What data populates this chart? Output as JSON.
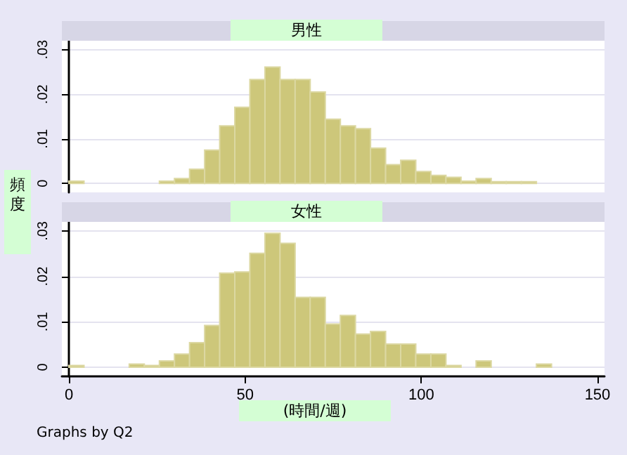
{
  "chart_data": [
    {
      "type": "histogram",
      "title": "男性",
      "ylabel": "頻度",
      "bins": [
        0,
        4.28,
        8.56,
        12.84,
        17.12,
        21.4,
        25.68,
        29.96,
        34.24,
        38.52,
        42.8,
        47.08,
        51.36,
        55.64,
        59.92,
        64.2,
        68.48,
        72.76,
        77.04,
        81.32,
        85.6,
        89.88,
        94.16,
        98.44,
        102.72,
        107,
        111.28,
        115.56,
        119.84,
        124.12,
        128.4,
        132.68,
        136.96
      ],
      "values": [
        0.0005,
        0,
        0,
        0,
        0,
        0,
        0.0005,
        0.0011,
        0.0032,
        0.0075,
        0.0129,
        0.0171,
        0.0233,
        0.0261,
        0.0233,
        0.0233,
        0.0205,
        0.0144,
        0.0129,
        0.0123,
        0.0079,
        0.0042,
        0.0052,
        0.0027,
        0.0018,
        0.0014,
        0.0005,
        0.0011,
        0.0004,
        0.0004,
        0.0004,
        0
      ],
      "color": "#cdc77a",
      "xlim": [
        -2,
        152
      ],
      "ylim": [
        -0.002,
        0.032
      ],
      "yticks": [
        0,
        {
          "value": 0.01,
          "label": ".01"
        },
        {
          "value": 0.02,
          "label": ".02"
        },
        {
          "value": 0.03,
          "label": ".03"
        }
      ],
      "grid": "y",
      "tick_labels": "y"
    },
    {
      "type": "histogram",
      "title": "女性",
      "xlabel": "(時間/週)",
      "annotations": [
        "Graphs by Q2"
      ],
      "bins": [
        0,
        4.28,
        8.56,
        12.84,
        17.12,
        21.4,
        25.68,
        29.96,
        34.24,
        38.52,
        42.8,
        47.08,
        51.36,
        55.64,
        59.92,
        64.2,
        68.48,
        72.76,
        77.04,
        81.32,
        85.6,
        89.88,
        94.16,
        98.44,
        102.72,
        107,
        111.28,
        115.56,
        119.84,
        124.12,
        128.4,
        132.68,
        136.96
      ],
      "values": [
        0.0004,
        0,
        0,
        0,
        0.0007,
        0.0004,
        0.0014,
        0.0029,
        0.0054,
        0.0092,
        0.0207,
        0.021,
        0.0251,
        0.0295,
        0.0273,
        0.0154,
        0.0154,
        0.0095,
        0.0114,
        0.0073,
        0.0079,
        0.0051,
        0.0051,
        0.0029,
        0.0029,
        0.0004,
        0,
        0.0014,
        0,
        0,
        0,
        0.0007
      ],
      "color": "#cdc77a",
      "xlim": [
        -2,
        152
      ],
      "xticks": [
        0,
        50,
        100,
        150
      ],
      "ylim": [
        -0.002,
        0.032
      ],
      "yticks": [
        0,
        {
          "value": 0.01,
          "label": ".01"
        },
        {
          "value": 0.02,
          "label": ".02"
        },
        {
          "value": 0.03,
          "label": ".03"
        }
      ],
      "grid": "y"
    }
  ]
}
